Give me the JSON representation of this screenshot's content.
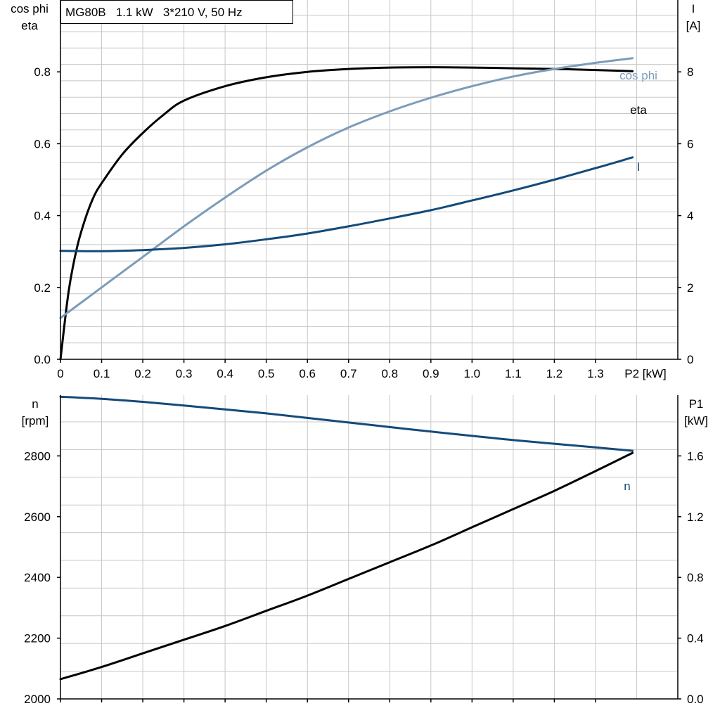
{
  "header": {
    "title": "MG80B   1.1 kW   3*210 V, 50 Hz"
  },
  "colors": {
    "eta": "#000000",
    "cos_phi": "#7b9cba",
    "current": "#144a7a",
    "speed": "#144a7a",
    "p1": "#000000",
    "grid": "#c8c8c8"
  },
  "chart_data": [
    {
      "type": "line",
      "x_tick_labels": [
        "0",
        "0.1",
        "0.2",
        "0.3",
        "0.4",
        "0.5",
        "0.6",
        "0.7",
        "0.8",
        "0.9",
        "1.0",
        "1.1",
        "1.2",
        "1.3"
      ],
      "x_ticks": [
        0,
        0.1,
        0.2,
        0.3,
        0.4,
        0.5,
        0.6,
        0.7,
        0.8,
        0.9,
        1.0,
        1.1,
        1.2,
        1.3
      ],
      "xlabel": "P2 [kW]",
      "xlim": [
        0,
        1.5
      ],
      "left_axis": {
        "label_line1": "cos phi",
        "label_line2": "eta",
        "ylim": [
          0,
          1.0
        ],
        "ticks": [
          0.0,
          0.2,
          0.4,
          0.6,
          0.8
        ],
        "tick_labels": [
          "0.0",
          "0.2",
          "0.4",
          "0.6",
          "0.8"
        ]
      },
      "right_axis": {
        "label_line1": "I",
        "label_line2": "[A]",
        "ylim": [
          0,
          10
        ],
        "ticks": [
          0,
          2,
          4,
          6,
          8
        ],
        "tick_labels": [
          "0",
          "2",
          "4",
          "6",
          "8"
        ]
      },
      "series": [
        {
          "name": "eta",
          "axis": "left",
          "x": [
            0,
            0.02,
            0.04,
            0.06,
            0.08,
            0.1,
            0.15,
            0.2,
            0.25,
            0.3,
            0.4,
            0.5,
            0.6,
            0.7,
            0.8,
            0.9,
            1.0,
            1.1,
            1.2,
            1.3,
            1.39
          ],
          "y": [
            0,
            0.19,
            0.31,
            0.39,
            0.45,
            0.49,
            0.57,
            0.63,
            0.68,
            0.72,
            0.76,
            0.785,
            0.8,
            0.808,
            0.812,
            0.813,
            0.812,
            0.81,
            0.808,
            0.805,
            0.802
          ]
        },
        {
          "name": "cos phi",
          "axis": "left",
          "x": [
            0,
            0.1,
            0.2,
            0.3,
            0.4,
            0.5,
            0.6,
            0.7,
            0.8,
            0.9,
            1.0,
            1.1,
            1.2,
            1.3,
            1.39
          ],
          "y": [
            0.115,
            0.2,
            0.285,
            0.37,
            0.45,
            0.525,
            0.59,
            0.645,
            0.69,
            0.728,
            0.76,
            0.787,
            0.808,
            0.825,
            0.838
          ]
        },
        {
          "name": "I",
          "axis": "right",
          "x": [
            0,
            0.1,
            0.2,
            0.3,
            0.4,
            0.5,
            0.6,
            0.7,
            0.8,
            0.9,
            1.0,
            1.1,
            1.2,
            1.3,
            1.39
          ],
          "y": [
            3.02,
            3.01,
            3.04,
            3.1,
            3.2,
            3.34,
            3.5,
            3.7,
            3.92,
            4.15,
            4.42,
            4.7,
            5.0,
            5.32,
            5.62
          ]
        }
      ]
    },
    {
      "type": "line",
      "x_ticks": [
        0,
        0.1,
        0.2,
        0.3,
        0.4,
        0.5,
        0.6,
        0.7,
        0.8,
        0.9,
        1.0,
        1.1,
        1.2,
        1.3
      ],
      "xlim": [
        0,
        1.5
      ],
      "left_axis": {
        "label_line1": "n",
        "label_line2": "[rpm]",
        "ylim": [
          2000,
          3000
        ],
        "ticks": [
          2000,
          2200,
          2400,
          2600,
          2800
        ],
        "tick_labels": [
          "2000",
          "2200",
          "2400",
          "2600",
          "2800"
        ]
      },
      "right_axis": {
        "label_line1": "P1",
        "label_line2": "[kW]",
        "ylim": [
          0,
          2.0
        ],
        "ticks": [
          0.0,
          0.4,
          0.8,
          1.2,
          1.6
        ],
        "tick_labels": [
          "0.0",
          "0.4",
          "0.8",
          "1.2",
          "1.6"
        ]
      },
      "series": [
        {
          "name": "n",
          "axis": "left",
          "x": [
            0,
            0.1,
            0.2,
            0.3,
            0.4,
            0.5,
            0.6,
            0.7,
            0.8,
            0.9,
            1.0,
            1.1,
            1.2,
            1.3,
            1.39
          ],
          "y": [
            2995,
            2988,
            2978,
            2966,
            2953,
            2940,
            2925,
            2910,
            2895,
            2880,
            2866,
            2852,
            2840,
            2828,
            2817
          ]
        },
        {
          "name": "",
          "axis": "right",
          "x": [
            0,
            0.1,
            0.2,
            0.3,
            0.4,
            0.5,
            0.6,
            0.7,
            0.8,
            0.9,
            1.0,
            1.1,
            1.2,
            1.3,
            1.39
          ],
          "y": [
            0.13,
            0.21,
            0.3,
            0.39,
            0.48,
            0.58,
            0.68,
            0.79,
            0.9,
            1.01,
            1.13,
            1.25,
            1.37,
            1.5,
            1.62
          ]
        }
      ]
    }
  ]
}
